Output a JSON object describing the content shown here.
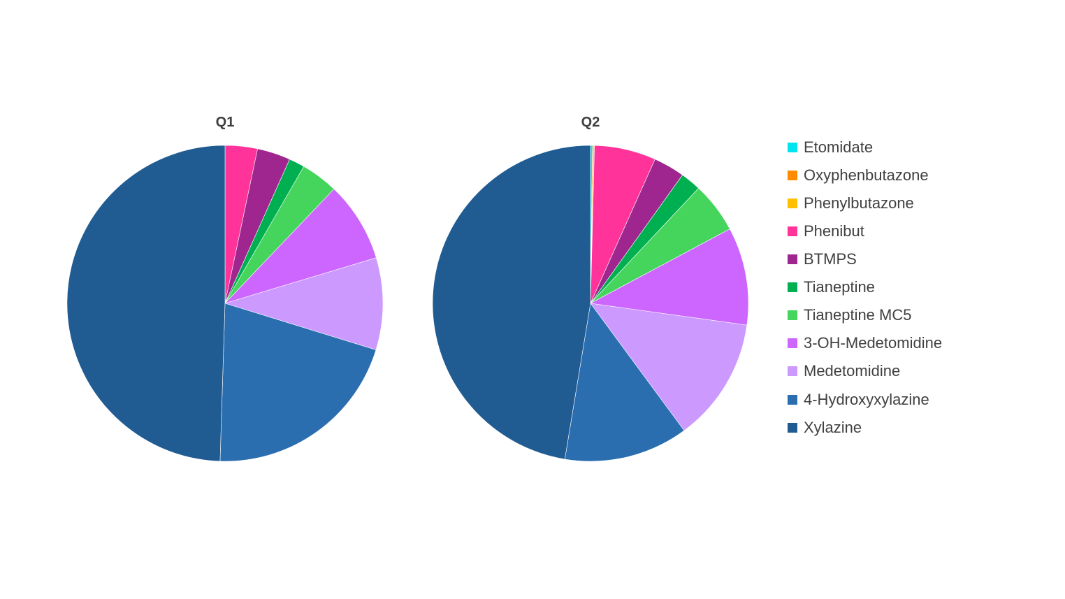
{
  "chart_data": [
    {
      "type": "pie",
      "title": "Q1",
      "categories": [
        "Etomidate",
        "Oxyphenbutazone",
        "Phenylbutazone",
        "Phenibut",
        "BTMPS",
        "Tianeptine",
        "Tianeptine MC5",
        "3-OH-Medetomidine",
        "Medetomidine",
        "4-Hydroxyxylazine",
        "Xylazine"
      ],
      "values": [
        0,
        0,
        0,
        3.3,
        3.4,
        1.6,
        3.8,
        8.2,
        9.4,
        20.7,
        49.4
      ],
      "colors": [
        "#00E5EE",
        "#FF8C00",
        "#FFC000",
        "#FF3399",
        "#A0268F",
        "#00B050",
        "#45D55C",
        "#CC66FF",
        "#CC99FF",
        "#2A6EB0",
        "#205C92"
      ]
    },
    {
      "type": "pie",
      "title": "Q2",
      "categories": [
        "Etomidate",
        "Oxyphenbutazone",
        "Phenylbutazone",
        "Phenibut",
        "BTMPS",
        "Tianeptine",
        "Tianeptine MC5",
        "3-OH-Medetomidine",
        "Medetomidine",
        "4-Hydroxyxylazine",
        "Xylazine"
      ],
      "values": [
        0.2,
        0.1,
        0.1,
        6.3,
        3.2,
        2.1,
        5.2,
        10.0,
        12.7,
        12.7,
        47.4
      ],
      "colors": [
        "#00E5EE",
        "#FF8C00",
        "#FFC000",
        "#FF3399",
        "#A0268F",
        "#00B050",
        "#45D55C",
        "#CC66FF",
        "#CC99FF",
        "#2A6EB0",
        "#205C92"
      ]
    }
  ],
  "legend": {
    "placement": "right",
    "items": [
      {
        "label": "Etomidate",
        "color": "#00E5EE"
      },
      {
        "label": "Oxyphenbutazone",
        "color": "#FF8C00"
      },
      {
        "label": "Phenylbutazone",
        "color": "#FFC000"
      },
      {
        "label": "Phenibut",
        "color": "#FF3399"
      },
      {
        "label": "BTMPS",
        "color": "#A0268F"
      },
      {
        "label": "Tianeptine",
        "color": "#00B050"
      },
      {
        "label": "Tianeptine MC5",
        "color": "#45D55C"
      },
      {
        "label": "3-OH-Medetomidine",
        "color": "#CC66FF"
      },
      {
        "label": "Medetomidine",
        "color": "#CC99FF"
      },
      {
        "label": "4-Hydroxyxylazine",
        "color": "#2A6EB0"
      },
      {
        "label": "Xylazine",
        "color": "#205C92"
      }
    ]
  }
}
